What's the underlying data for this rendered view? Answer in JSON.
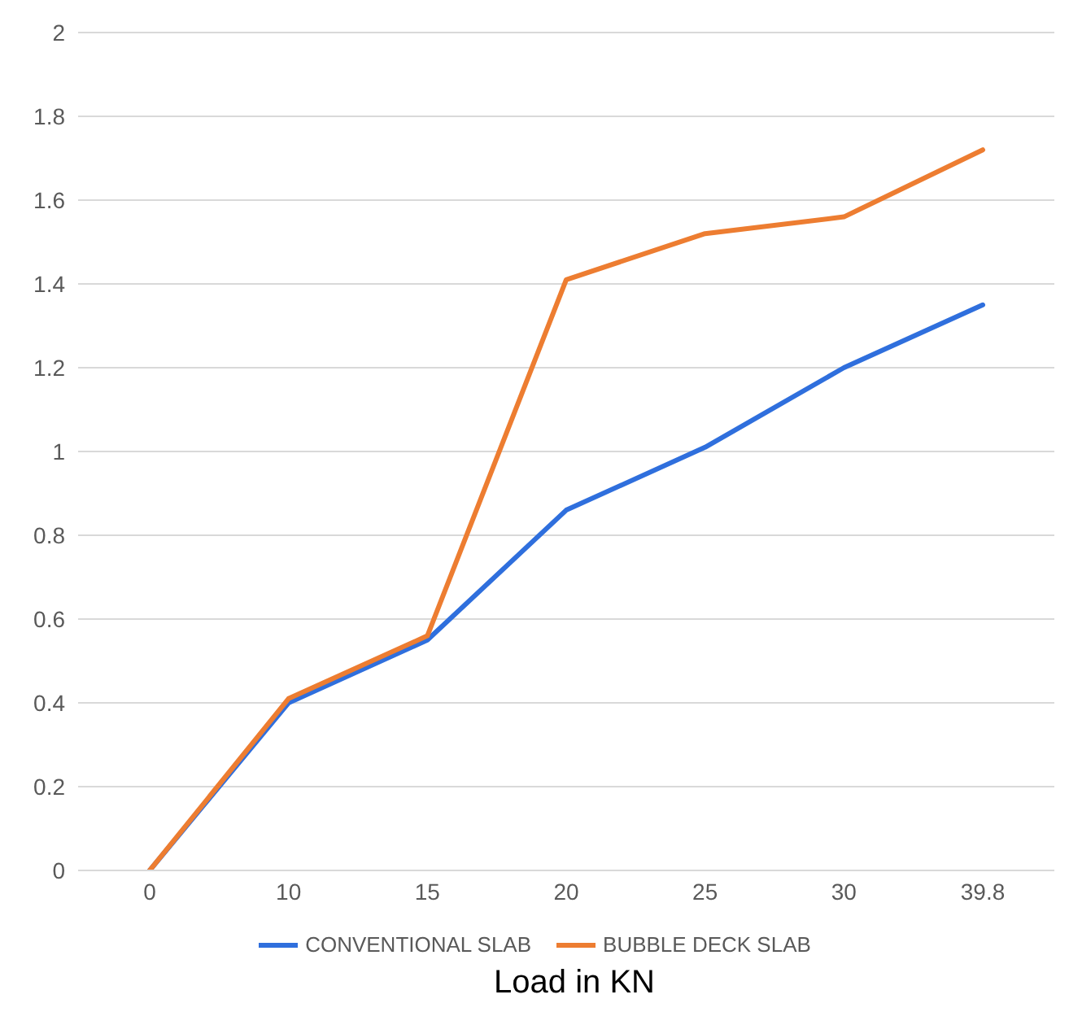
{
  "chart_data": {
    "type": "line",
    "xlabel": "Load in KN",
    "categories": [
      "0",
      "10",
      "15",
      "20",
      "25",
      "30",
      "39.8"
    ],
    "series": [
      {
        "name": "CONVENTIONAL SLAB",
        "color": "#2f6fdd",
        "values": [
          0,
          0.4,
          0.55,
          0.86,
          1.01,
          1.2,
          1.35
        ]
      },
      {
        "name": "BUBBLE DECK SLAB",
        "color": "#ed7d31",
        "values": [
          0,
          0.41,
          0.56,
          1.41,
          1.52,
          1.56,
          1.72
        ]
      }
    ],
    "ylim": [
      0,
      2
    ],
    "yticks": [
      0,
      {
        "value": 0.2,
        "label": "0.2"
      },
      {
        "value": 0.4,
        "label": "0.4"
      },
      {
        "value": 0.6,
        "label": "0.6"
      },
      {
        "value": 0.8,
        "label": "0.8"
      },
      1,
      {
        "value": 1.2,
        "label": "1.2"
      },
      {
        "value": 1.4,
        "label": "1.4"
      },
      {
        "value": 1.6,
        "label": "1.6"
      },
      {
        "value": 1.8,
        "label": "1.8"
      },
      2
    ],
    "grid": "y",
    "legend": "bottom",
    "marker": "none",
    "line_style": "solid"
  }
}
